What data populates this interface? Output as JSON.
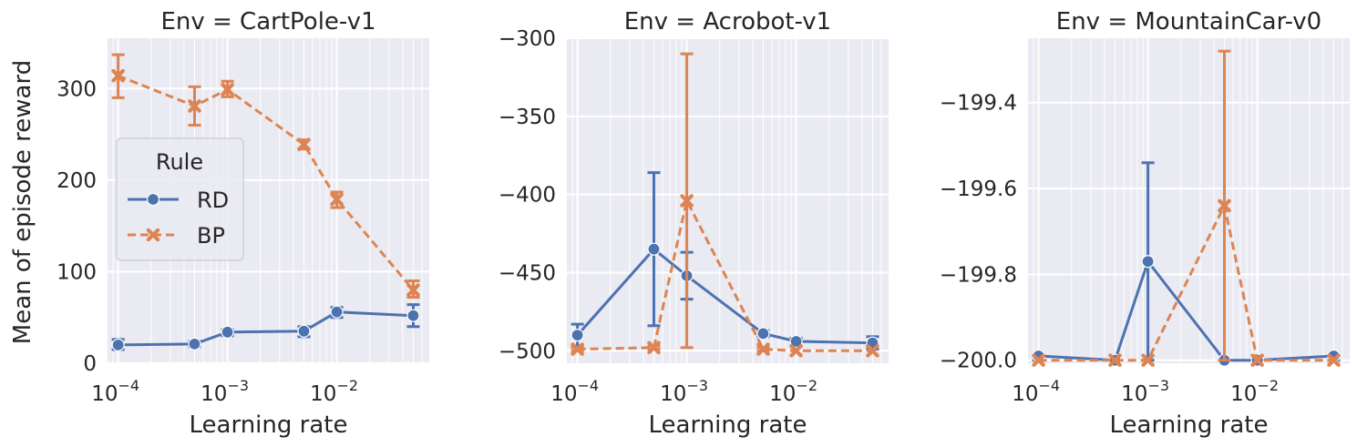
{
  "figure": {
    "ylabel": "Mean of episode reward",
    "colors": {
      "background": "#eaeaf2",
      "grid": "#ffffff",
      "RD": "#4c72b0",
      "BP": "#dd8452"
    }
  },
  "legend": {
    "title": "Rule",
    "entries": [
      {
        "label": "RD",
        "marker": "circle",
        "line": "solid"
      },
      {
        "label": "BP",
        "marker": "x",
        "line": "dashed"
      }
    ]
  },
  "chart_data": [
    {
      "type": "line",
      "title": "Env = CartPole-v1",
      "xlabel": "Learning rate",
      "ylabel": "Mean of episode reward",
      "xscale": "log",
      "xlim": [
        8e-05,
        0.07
      ],
      "ylim": [
        0,
        355
      ],
      "yticks": [
        0,
        100,
        200,
        300
      ],
      "ytick_labels": [
        "0",
        "100",
        "200",
        "300"
      ],
      "xticks": [
        0.0001,
        0.001,
        0.01
      ],
      "xtick_labels": [
        [
          "10",
          "−4"
        ],
        [
          "10",
          "−3"
        ],
        [
          "10",
          "−2"
        ]
      ],
      "x": [
        0.0001,
        0.0005,
        0.001,
        0.005,
        0.01,
        0.05
      ],
      "legend_position": "center-left",
      "series": [
        {
          "name": "RD",
          "values": [
            20,
            21,
            34,
            35,
            56,
            52
          ],
          "err_low": [
            15,
            18,
            30,
            29,
            50,
            40
          ],
          "err_high": [
            26,
            24,
            37,
            40,
            61,
            64
          ]
        },
        {
          "name": "BP",
          "values": [
            314,
            281,
            299,
            239,
            179,
            80
          ],
          "err_low": [
            290,
            260,
            291,
            234,
            170,
            72
          ],
          "err_high": [
            337,
            302,
            308,
            244,
            187,
            90
          ]
        }
      ]
    },
    {
      "type": "line",
      "title": "Env = Acrobot-v1",
      "xlabel": "Learning rate",
      "ylabel": "",
      "xscale": "log",
      "xlim": [
        8e-05,
        0.07
      ],
      "ylim": [
        -508,
        -300
      ],
      "yticks": [
        -500,
        -450,
        -400,
        -350,
        -300
      ],
      "ytick_labels": [
        "−500",
        "−450",
        "−400",
        "−350",
        "−300"
      ],
      "xticks": [
        0.0001,
        0.001,
        0.01
      ],
      "xtick_labels": [
        [
          "10",
          "−4"
        ],
        [
          "10",
          "−3"
        ],
        [
          "10",
          "−2"
        ]
      ],
      "x": [
        0.0001,
        0.0005,
        0.001,
        0.005,
        0.01,
        0.05
      ],
      "series": [
        {
          "name": "RD",
          "values": [
            -490,
            -435,
            -452,
            -489,
            -494,
            -495
          ],
          "err_low": [
            -497,
            -484,
            -467,
            -491,
            -497,
            -499
          ],
          "err_high": [
            -483,
            -386,
            -437,
            -487,
            -492,
            -491
          ]
        },
        {
          "name": "BP",
          "values": [
            -499,
            -498,
            -404,
            -499,
            -500,
            -500
          ],
          "err_low": [
            -500,
            -499,
            -498,
            -500,
            -500,
            -500
          ],
          "err_high": [
            -498,
            -497,
            -310,
            -498,
            -500,
            -500
          ]
        }
      ]
    },
    {
      "type": "line",
      "title": "Env = MountainCar-v0",
      "xlabel": "Learning rate",
      "ylabel": "",
      "xscale": "log",
      "xlim": [
        8e-05,
        0.07
      ],
      "ylim": [
        -200.007,
        -199.25
      ],
      "yticks": [
        -200.0,
        -199.8,
        -199.6,
        -199.4
      ],
      "ytick_labels": [
        "−200.0",
        "−199.8",
        "−199.6",
        "−199.4"
      ],
      "xticks": [
        0.0001,
        0.001,
        0.01
      ],
      "xtick_labels": [
        [
          "10",
          "−4"
        ],
        [
          "10",
          "−3"
        ],
        [
          "10",
          "−2"
        ]
      ],
      "x": [
        0.0001,
        0.0005,
        0.001,
        0.005,
        0.01,
        0.05
      ],
      "series": [
        {
          "name": "RD",
          "values": [
            -199.99,
            -200.0,
            -199.77,
            -200.0,
            -200.0,
            -199.99
          ],
          "err_low": [
            -200.0,
            -200.0,
            -200.0,
            -200.0,
            -200.0,
            -200.0
          ],
          "err_high": [
            -199.99,
            -200.0,
            -199.54,
            -200.0,
            -200.0,
            -199.99
          ]
        },
        {
          "name": "BP",
          "values": [
            -200.0,
            -200.0,
            -200.0,
            -199.64,
            -200.0,
            -200.0
          ],
          "err_low": [
            -200.0,
            -200.0,
            -200.0,
            -200.0,
            -200.0,
            -200.0
          ],
          "err_high": [
            -200.0,
            -200.0,
            -200.0,
            -199.28,
            -200.0,
            -200.0
          ]
        }
      ]
    }
  ]
}
